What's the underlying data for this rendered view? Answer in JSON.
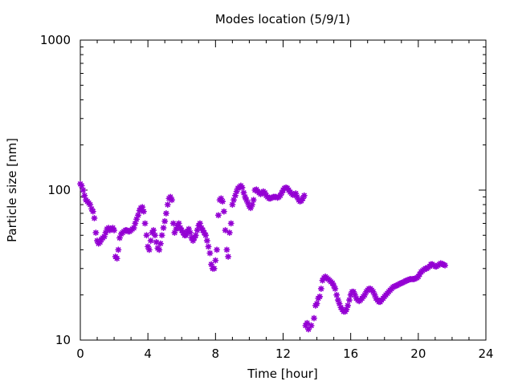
{
  "chart_data": {
    "type": "scatter",
    "title": "Modes location (5/9/1)",
    "xlabel": "Time [hour]",
    "ylabel": "Particle size [nm]",
    "xlim": [
      0,
      24
    ],
    "ylim": [
      10,
      1000
    ],
    "yscale": "log",
    "x_ticks": [
      0,
      4,
      8,
      12,
      16,
      20,
      24
    ],
    "y_ticks": [
      10,
      100,
      1000
    ],
    "grid": false,
    "legend": "none",
    "marker_color": "#9400d3",
    "series": [
      {
        "name": "",
        "points": [
          [
            0.0,
            110
          ],
          [
            0.08,
            107
          ],
          [
            0.17,
            100
          ],
          [
            0.25,
            92
          ],
          [
            0.33,
            86
          ],
          [
            0.42,
            84
          ],
          [
            0.5,
            82
          ],
          [
            0.58,
            80
          ],
          [
            0.67,
            75
          ],
          [
            0.75,
            72
          ],
          [
            0.83,
            65
          ],
          [
            0.92,
            52
          ],
          [
            1.0,
            46
          ],
          [
            1.08,
            44
          ],
          [
            1.17,
            45
          ],
          [
            1.25,
            47
          ],
          [
            1.33,
            48
          ],
          [
            1.42,
            49
          ],
          [
            1.5,
            52
          ],
          [
            1.58,
            55
          ],
          [
            1.67,
            56
          ],
          [
            1.75,
            54
          ],
          [
            1.83,
            55
          ],
          [
            1.92,
            56
          ],
          [
            2.0,
            54
          ],
          [
            2.08,
            36
          ],
          [
            2.17,
            35
          ],
          [
            2.25,
            40
          ],
          [
            2.33,
            48
          ],
          [
            2.42,
            51
          ],
          [
            2.5,
            52
          ],
          [
            2.58,
            53
          ],
          [
            2.67,
            54
          ],
          [
            2.75,
            54
          ],
          [
            2.83,
            53
          ],
          [
            2.92,
            53
          ],
          [
            3.0,
            54
          ],
          [
            3.08,
            55
          ],
          [
            3.17,
            56
          ],
          [
            3.25,
            60
          ],
          [
            3.33,
            64
          ],
          [
            3.42,
            68
          ],
          [
            3.5,
            73
          ],
          [
            3.58,
            76
          ],
          [
            3.67,
            77
          ],
          [
            3.75,
            72
          ],
          [
            3.83,
            60
          ],
          [
            3.92,
            50
          ],
          [
            4.0,
            42
          ],
          [
            4.08,
            40
          ],
          [
            4.17,
            46
          ],
          [
            4.25,
            52
          ],
          [
            4.33,
            54
          ],
          [
            4.42,
            50
          ],
          [
            4.5,
            45
          ],
          [
            4.58,
            41
          ],
          [
            4.67,
            40
          ],
          [
            4.75,
            44
          ],
          [
            4.83,
            50
          ],
          [
            4.92,
            56
          ],
          [
            5.0,
            62
          ],
          [
            5.08,
            70
          ],
          [
            5.17,
            80
          ],
          [
            5.25,
            88
          ],
          [
            5.33,
            90
          ],
          [
            5.42,
            86
          ],
          [
            5.5,
            60
          ],
          [
            5.58,
            52
          ],
          [
            5.67,
            55
          ],
          [
            5.75,
            58
          ],
          [
            5.83,
            60
          ],
          [
            5.92,
            56
          ],
          [
            6.0,
            54
          ],
          [
            6.08,
            52
          ],
          [
            6.17,
            50
          ],
          [
            6.25,
            50
          ],
          [
            6.33,
            53
          ],
          [
            6.42,
            55
          ],
          [
            6.5,
            52
          ],
          [
            6.58,
            48
          ],
          [
            6.67,
            46
          ],
          [
            6.75,
            48
          ],
          [
            6.83,
            50
          ],
          [
            6.92,
            54
          ],
          [
            7.0,
            58
          ],
          [
            7.08,
            60
          ],
          [
            7.17,
            56
          ],
          [
            7.25,
            54
          ],
          [
            7.33,
            52
          ],
          [
            7.42,
            50
          ],
          [
            7.5,
            46
          ],
          [
            7.58,
            42
          ],
          [
            7.67,
            38
          ],
          [
            7.75,
            32
          ],
          [
            7.83,
            30
          ],
          [
            7.92,
            30
          ],
          [
            8.0,
            34
          ],
          [
            8.08,
            40
          ],
          [
            8.17,
            68
          ],
          [
            8.25,
            86
          ],
          [
            8.33,
            88
          ],
          [
            8.42,
            84
          ],
          [
            8.5,
            72
          ],
          [
            8.58,
            54
          ],
          [
            8.67,
            40
          ],
          [
            8.75,
            36
          ],
          [
            8.83,
            52
          ],
          [
            8.92,
            60
          ],
          [
            9.0,
            80
          ],
          [
            9.08,
            86
          ],
          [
            9.17,
            92
          ],
          [
            9.25,
            98
          ],
          [
            9.33,
            103
          ],
          [
            9.42,
            105
          ],
          [
            9.5,
            107
          ],
          [
            9.58,
            104
          ],
          [
            9.67,
            96
          ],
          [
            9.75,
            90
          ],
          [
            9.83,
            86
          ],
          [
            9.92,
            82
          ],
          [
            10.0,
            78
          ],
          [
            10.08,
            76
          ],
          [
            10.17,
            80
          ],
          [
            10.25,
            86
          ],
          [
            10.33,
            100
          ],
          [
            10.42,
            101
          ],
          [
            10.5,
            98
          ],
          [
            10.58,
            96
          ],
          [
            10.67,
            94
          ],
          [
            10.75,
            96
          ],
          [
            10.83,
            98
          ],
          [
            10.92,
            96
          ],
          [
            11.0,
            92
          ],
          [
            11.08,
            90
          ],
          [
            11.17,
            88
          ],
          [
            11.25,
            88
          ],
          [
            11.33,
            89
          ],
          [
            11.42,
            90
          ],
          [
            11.5,
            90
          ],
          [
            11.58,
            90
          ],
          [
            11.67,
            89
          ],
          [
            11.75,
            90
          ],
          [
            11.83,
            92
          ],
          [
            11.92,
            96
          ],
          [
            12.0,
            100
          ],
          [
            12.08,
            103
          ],
          [
            12.17,
            104
          ],
          [
            12.25,
            103
          ],
          [
            12.33,
            100
          ],
          [
            12.42,
            97
          ],
          [
            12.5,
            95
          ],
          [
            12.58,
            93
          ],
          [
            12.67,
            93
          ],
          [
            12.75,
            95
          ],
          [
            12.83,
            90
          ],
          [
            12.92,
            86
          ],
          [
            13.0,
            84
          ],
          [
            13.08,
            85
          ],
          [
            13.17,
            88
          ],
          [
            13.25,
            92
          ],
          [
            13.33,
            12.5
          ],
          [
            13.42,
            13
          ],
          [
            13.5,
            11.8
          ],
          [
            13.67,
            12.5
          ],
          [
            13.83,
            14
          ],
          [
            13.92,
            17
          ],
          [
            14.0,
            17.5
          ],
          [
            14.08,
            19
          ],
          [
            14.17,
            19.5
          ],
          [
            14.25,
            22
          ],
          [
            14.33,
            25
          ],
          [
            14.42,
            26
          ],
          [
            14.5,
            26.5
          ],
          [
            14.58,
            26
          ],
          [
            14.67,
            25.5
          ],
          [
            14.75,
            25
          ],
          [
            14.83,
            24.5
          ],
          [
            14.92,
            24
          ],
          [
            15.0,
            23
          ],
          [
            15.08,
            22
          ],
          [
            15.17,
            20
          ],
          [
            15.25,
            18.5
          ],
          [
            15.33,
            17.5
          ],
          [
            15.42,
            16.5
          ],
          [
            15.5,
            16
          ],
          [
            15.58,
            15.5
          ],
          [
            15.67,
            15.5
          ],
          [
            15.75,
            16
          ],
          [
            15.83,
            17
          ],
          [
            15.92,
            18.5
          ],
          [
            16.0,
            20
          ],
          [
            16.08,
            21
          ],
          [
            16.17,
            21
          ],
          [
            16.25,
            20
          ],
          [
            16.33,
            19
          ],
          [
            16.42,
            18.5
          ],
          [
            16.5,
            18.2
          ],
          [
            16.58,
            18.5
          ],
          [
            16.67,
            19
          ],
          [
            16.75,
            19.5
          ],
          [
            16.83,
            20
          ],
          [
            16.92,
            21
          ],
          [
            17.0,
            21.5
          ],
          [
            17.08,
            22
          ],
          [
            17.17,
            22
          ],
          [
            17.25,
            21.5
          ],
          [
            17.33,
            21
          ],
          [
            17.42,
            20
          ],
          [
            17.5,
            19
          ],
          [
            17.58,
            18.5
          ],
          [
            17.67,
            18
          ],
          [
            17.75,
            18
          ],
          [
            17.83,
            18.5
          ],
          [
            17.92,
            19
          ],
          [
            18.0,
            19.5
          ],
          [
            18.08,
            20
          ],
          [
            18.17,
            20.5
          ],
          [
            18.25,
            21
          ],
          [
            18.33,
            21.5
          ],
          [
            18.42,
            22
          ],
          [
            18.5,
            22.5
          ],
          [
            18.58,
            22.8
          ],
          [
            18.67,
            23
          ],
          [
            18.75,
            23.2
          ],
          [
            18.83,
            23.5
          ],
          [
            18.92,
            23.8
          ],
          [
            19.0,
            24
          ],
          [
            19.08,
            24.2
          ],
          [
            19.17,
            24.5
          ],
          [
            19.25,
            24.8
          ],
          [
            19.33,
            25
          ],
          [
            19.42,
            25.2
          ],
          [
            19.5,
            25.5
          ],
          [
            19.58,
            25.5
          ],
          [
            19.67,
            25.5
          ],
          [
            19.75,
            25.5
          ],
          [
            19.83,
            25.8
          ],
          [
            19.92,
            26
          ],
          [
            20.0,
            26.5
          ],
          [
            20.08,
            27.5
          ],
          [
            20.17,
            28.5
          ],
          [
            20.25,
            29
          ],
          [
            20.33,
            29.5
          ],
          [
            20.42,
            30
          ],
          [
            20.5,
            30
          ],
          [
            20.58,
            30.5
          ],
          [
            20.67,
            31
          ],
          [
            20.75,
            32
          ],
          [
            20.83,
            32
          ],
          [
            20.92,
            31.5
          ],
          [
            21.0,
            31
          ],
          [
            21.08,
            31
          ],
          [
            21.17,
            31.5
          ],
          [
            21.25,
            32
          ],
          [
            21.33,
            32.5
          ],
          [
            21.42,
            32.2
          ],
          [
            21.5,
            31.8
          ],
          [
            21.58,
            31.5
          ]
        ]
      }
    ]
  }
}
